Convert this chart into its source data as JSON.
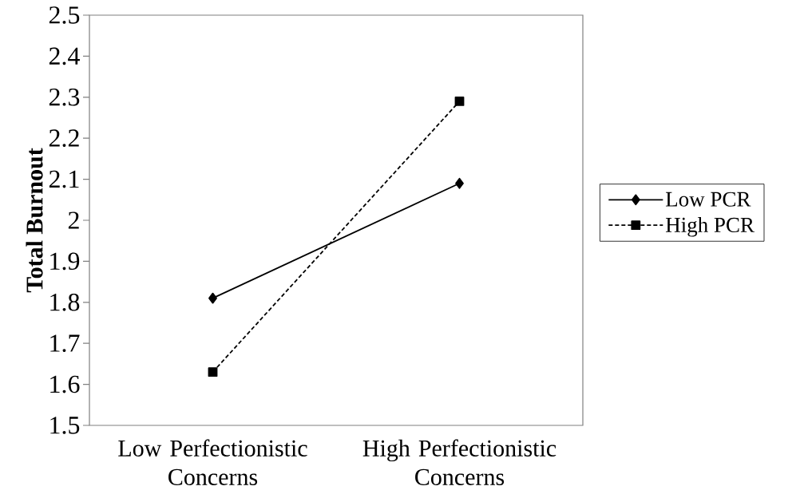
{
  "chart_data": {
    "type": "line",
    "ylabel": "Total Burnout",
    "categories": [
      "Low Perfectionistic Concerns",
      "High Perfectionistic Concerns"
    ],
    "series": [
      {
        "name": "Low PCR",
        "color": "#000000",
        "values": [
          1.81,
          2.09
        ],
        "marker": "diamond",
        "line_style": "solid"
      },
      {
        "name": "High PCR",
        "color": "#000000",
        "values": [
          1.63,
          2.29
        ],
        "marker": "square",
        "line_style": "dashed"
      }
    ],
    "ylim": [
      1.5,
      2.5
    ],
    "yticks": [
      1.5,
      1.6,
      1.7,
      1.8,
      1.9,
      2,
      2.1,
      2.2,
      2.3,
      2.4,
      2.5
    ],
    "legend": "right"
  }
}
